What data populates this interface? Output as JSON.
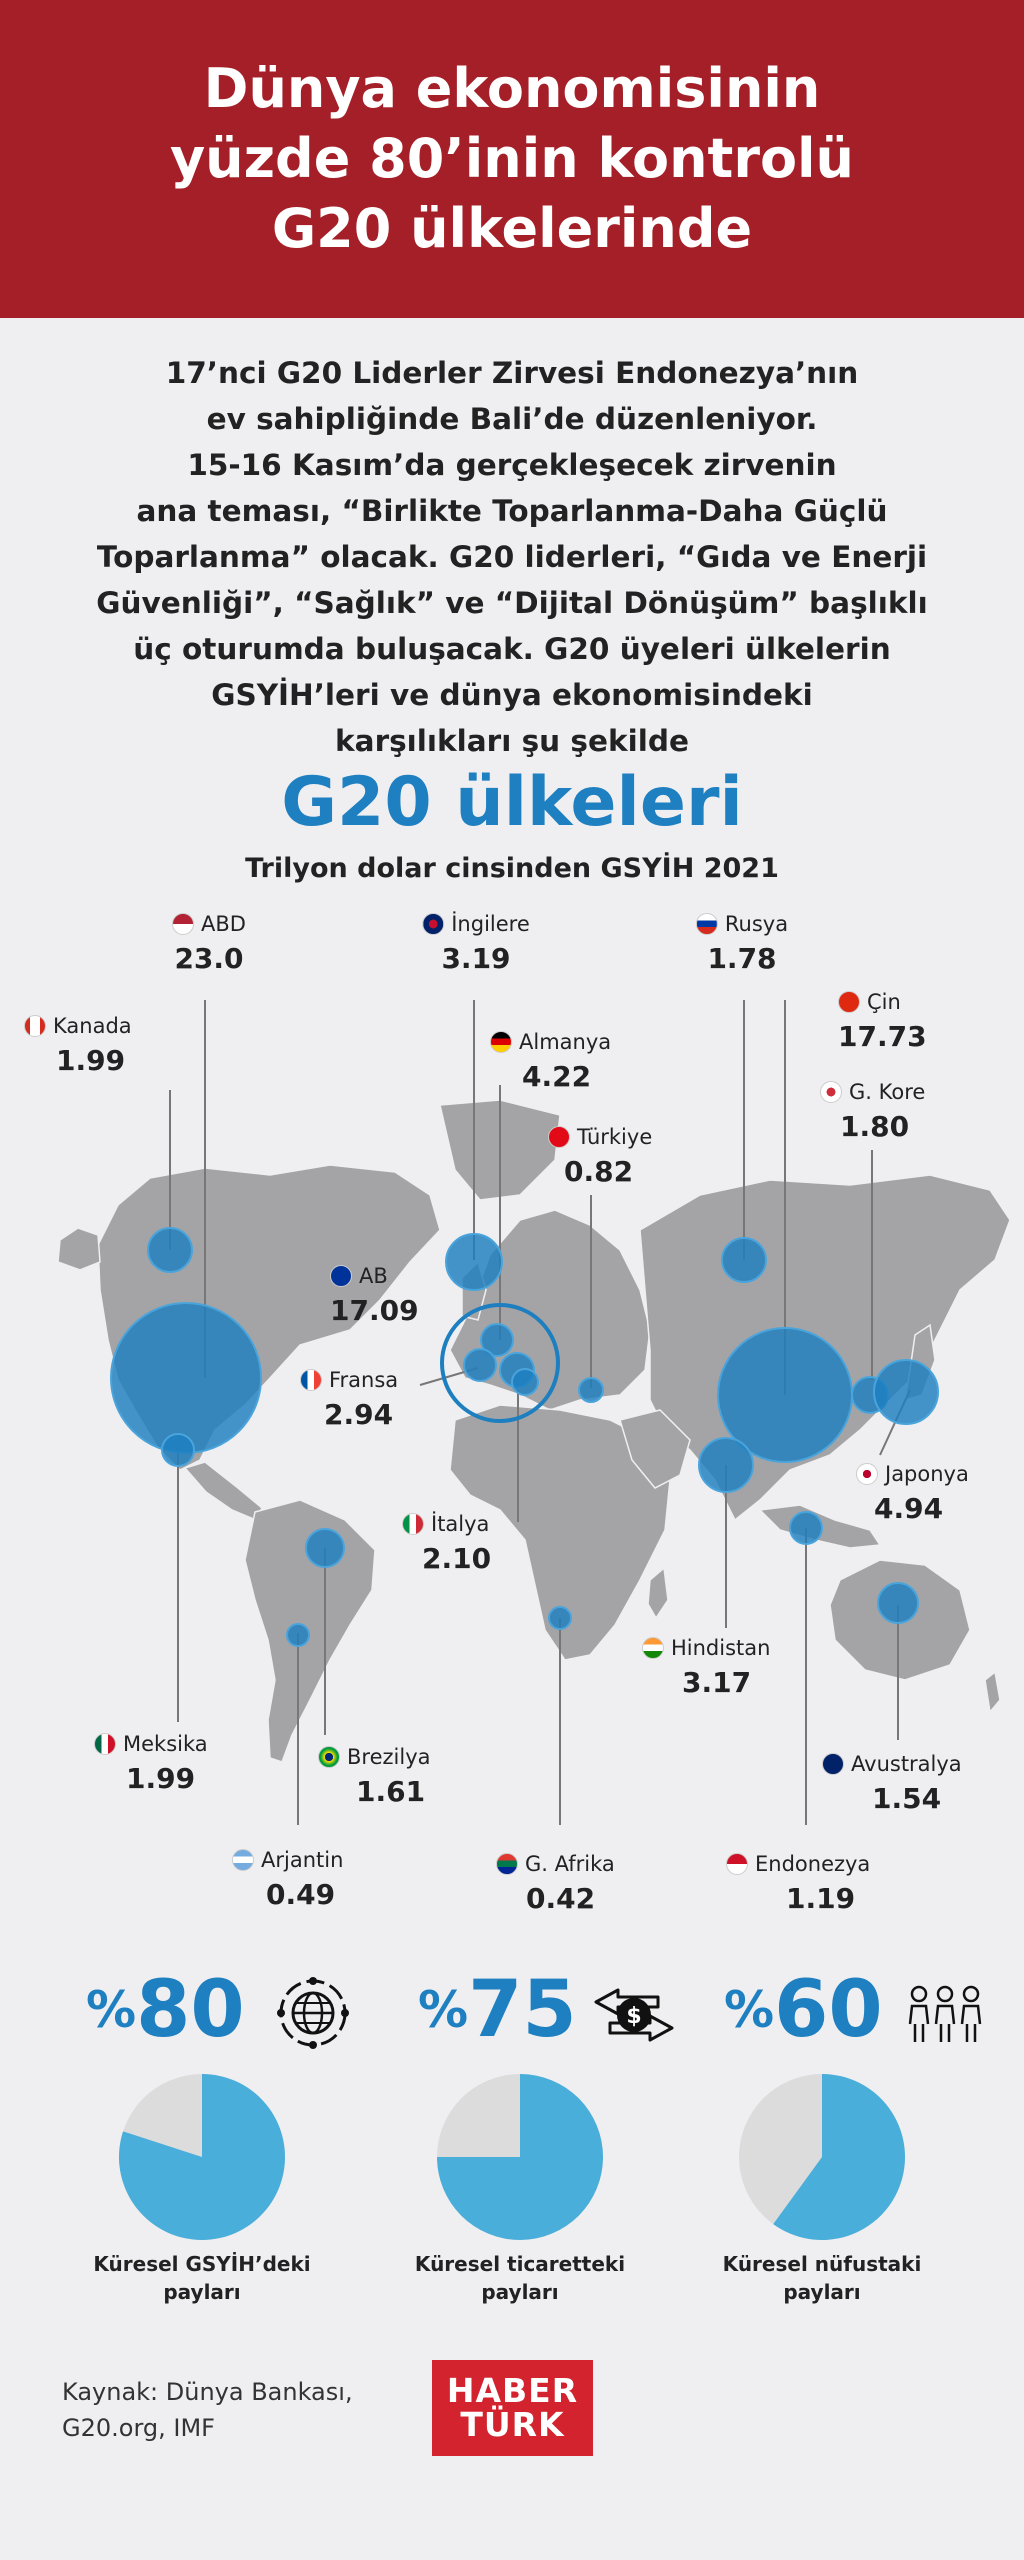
{
  "header": {
    "title_lines": [
      "Dünya ekonomisinin",
      "yüzde 80’inin kontrolü",
      "G20 ülkelerinde"
    ]
  },
  "intro": {
    "lines": [
      "17’nci G20 Liderler Zirvesi Endonezya’nın",
      "ev sahipliğinde Bali’de düzenleniyor.",
      "15-16 Kasım’da gerçekleşecek zirvenin",
      "ana teması, “Birlikte Toparlanma-Daha Güçlü",
      "Toparlanma” olacak. G20 liderleri, “Gıda ve Enerji",
      "Güvenliği”, “Sağlık” ve “Dijital Dönüşüm” başlıklı",
      "üç oturumda buluşacak. G20 üyeleri ülkelerin",
      "GSYİH’leri ve dünya ekonomisindeki",
      "karşılıkları şu şekilde"
    ]
  },
  "map": {
    "title": "G20 ülkeleri",
    "subtitle": "Trilyon dolar cinsinden GSYİH 2021",
    "countries": [
      {
        "id": "abd",
        "name": "ABD",
        "value": "23.0",
        "flag": "us-flag"
      },
      {
        "id": "ingilere",
        "name": "İngilere",
        "value": "3.19",
        "flag": "uk-flag"
      },
      {
        "id": "rusya",
        "name": "Rusya",
        "value": "1.78",
        "flag": "ru-flag"
      },
      {
        "id": "kanada",
        "name": "Kanada",
        "value": "1.99",
        "flag": "ca-flag"
      },
      {
        "id": "almanya",
        "name": "Almanya",
        "value": "4.22",
        "flag": "de-flag"
      },
      {
        "id": "cin",
        "name": "Çin",
        "value": "17.73",
        "flag": "cn-flag"
      },
      {
        "id": "gkore",
        "name": "G. Kore",
        "value": "1.80",
        "flag": "kr-flag"
      },
      {
        "id": "turkiye",
        "name": "Türkiye",
        "value": "0.82",
        "flag": "tr-flag"
      },
      {
        "id": "ab",
        "name": "AB",
        "value": "17.09",
        "flag": "eu-flag"
      },
      {
        "id": "fransa",
        "name": "Fransa",
        "value": "2.94",
        "flag": "fr-flag"
      },
      {
        "id": "japonya",
        "name": "Japonya",
        "value": "4.94",
        "flag": "jp-flag"
      },
      {
        "id": "italya",
        "name": "İtalya",
        "value": "2.10",
        "flag": "it-flag"
      },
      {
        "id": "hindistan",
        "name": "Hindistan",
        "value": "3.17",
        "flag": "in-flag"
      },
      {
        "id": "meksika",
        "name": "Meksika",
        "value": "1.99",
        "flag": "mx-flag"
      },
      {
        "id": "brezilya",
        "name": "Brezilya",
        "value": "1.61",
        "flag": "br-flag"
      },
      {
        "id": "avustralya",
        "name": "Avustralya",
        "value": "1.54",
        "flag": "au-flag"
      },
      {
        "id": "arjantin",
        "name": "Arjantin",
        "value": "0.49",
        "flag": "ar-flag"
      },
      {
        "id": "gafrika",
        "name": "G. Afrika",
        "value": "0.42",
        "flag": "za-flag"
      },
      {
        "id": "endonezya",
        "name": "Endonezya",
        "value": "1.19",
        "flag": "id-flag"
      }
    ]
  },
  "stats": [
    {
      "pct_symbol": "%",
      "number": "80",
      "share": 0.8,
      "icon": "globe-icon",
      "label_lines": [
        "Küresel GSYİH’deki",
        "payları"
      ]
    },
    {
      "pct_symbol": "%",
      "number": "75",
      "share": 0.75,
      "icon": "dollar-exchange-icon",
      "label_lines": [
        "Küresel ticaretteki",
        "payları"
      ]
    },
    {
      "pct_symbol": "%",
      "number": "60",
      "share": 0.6,
      "icon": "people-icon",
      "label_lines": [
        "Küresel nüfustaki",
        "payları"
      ]
    }
  ],
  "source": {
    "lines": [
      "Kaynak: Dünya Bankası,",
      "G20.org, IMF"
    ]
  },
  "logo": {
    "line1": "HABER",
    "line2": "TÜRK"
  },
  "colors": {
    "header_bg": "#a41f28",
    "accent_blue": "#1e7fc1",
    "pie_blue": "#4aaedb",
    "pie_gray": "#dcdcdd",
    "land": "#a4a4a6",
    "logo_red": "#d3232e"
  }
}
